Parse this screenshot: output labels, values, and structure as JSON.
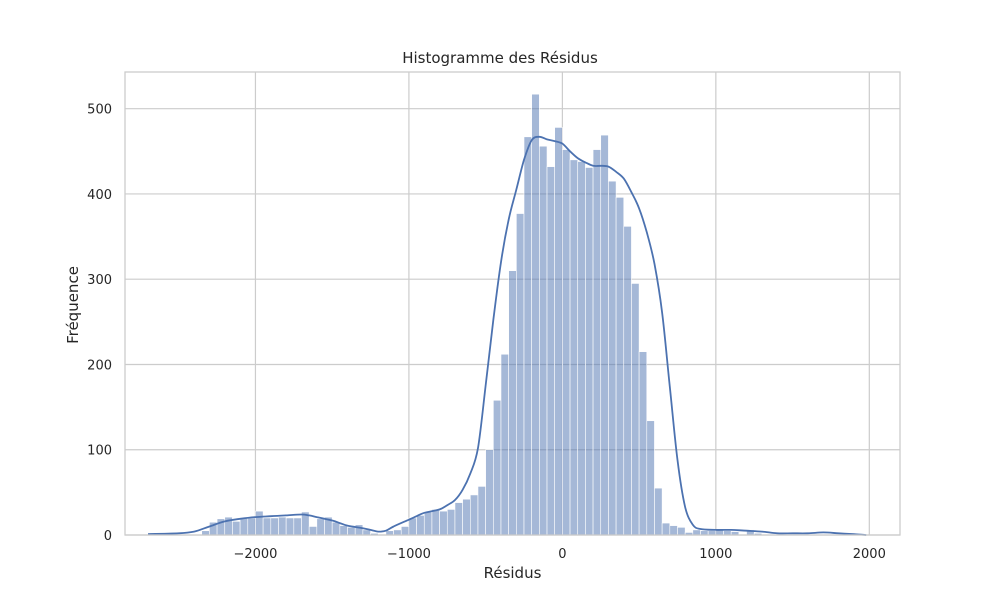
{
  "chart_data": {
    "type": "bar",
    "title": "Histogramme des Résidus",
    "xlabel": "Résidus",
    "ylabel": "Fréquence",
    "xlim": [
      -2850,
      2200
    ],
    "ylim": [
      0,
      543
    ],
    "x_ticks": [
      -2000,
      -1000,
      0,
      1000,
      2000
    ],
    "x_tick_labels": [
      "−2000",
      "−1000",
      "0",
      "1000",
      "2000"
    ],
    "y_ticks": [
      0,
      100,
      200,
      300,
      400,
      500
    ],
    "y_tick_labels": [
      "0",
      "100",
      "200",
      "300",
      "400",
      "500"
    ],
    "grid": true,
    "bar_color": "#4c72b0",
    "bar_alpha": 0.5,
    "kde_color": "#4c72b0",
    "bin_start": -2700,
    "bin_width": 50,
    "bin_values": [
      1,
      1,
      1,
      1,
      0,
      1,
      1,
      5,
      15,
      19,
      21,
      16,
      20,
      20,
      28,
      20,
      20,
      21,
      20,
      20,
      27,
      10,
      19,
      21,
      15,
      11,
      9,
      12,
      6,
      2,
      0,
      5,
      6,
      10,
      20,
      23,
      27,
      30,
      28,
      30,
      38,
      42,
      47,
      57,
      100,
      158,
      212,
      310,
      377,
      467,
      517,
      456,
      432,
      478,
      452,
      440,
      438,
      431,
      452,
      469,
      415,
      396,
      362,
      295,
      215,
      134,
      55,
      14,
      11,
      9,
      3,
      6,
      5,
      5,
      6,
      5,
      4,
      1,
      6,
      2,
      1,
      1,
      1,
      1,
      1,
      1,
      1,
      1,
      1,
      1
    ],
    "kde_x": [
      -2700,
      -2500,
      -2400,
      -2300,
      -2200,
      -2100,
      -2000,
      -1900,
      -1800,
      -1700,
      -1650,
      -1600,
      -1500,
      -1450,
      -1400,
      -1300,
      -1250,
      -1200,
      -1150,
      -1100,
      -1000,
      -950,
      -900,
      -800,
      -750,
      -700,
      -650,
      -600,
      -550,
      -500,
      -450,
      -400,
      -350,
      -300,
      -250,
      -200,
      -150,
      -100,
      -50,
      0,
      50,
      100,
      150,
      200,
      250,
      300,
      350,
      400,
      450,
      500,
      550,
      600,
      650,
      700,
      750,
      800,
      850,
      900,
      1000,
      1100,
      1200,
      1300,
      1400,
      1500,
      1600,
      1700,
      1800,
      1900,
      1980
    ],
    "kde_y": [
      1,
      2,
      4,
      10,
      16,
      19,
      21,
      22,
      23,
      24,
      23,
      21,
      17,
      14,
      11,
      8,
      6,
      4,
      5,
      10,
      18,
      22,
      26,
      30,
      35,
      41,
      53,
      72,
      102,
      175,
      252,
      320,
      370,
      405,
      440,
      463,
      467,
      464,
      462,
      459,
      450,
      442,
      437,
      433,
      433,
      432,
      426,
      418,
      402,
      383,
      355,
      318,
      261,
      174,
      88,
      33,
      12,
      7,
      6,
      6,
      5,
      4,
      2,
      2,
      2,
      3,
      2,
      1,
      0
    ]
  }
}
